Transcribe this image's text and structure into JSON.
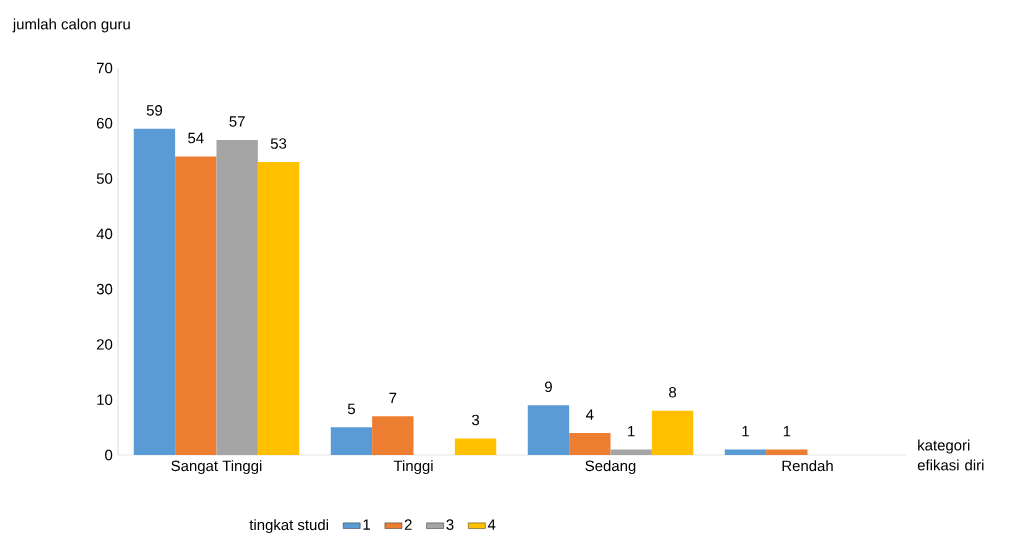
{
  "chart_data": {
    "type": "bar",
    "ylabel": "jumlah calon guru",
    "xlabel": "kategori efikasi diri",
    "legend_title": "tingkat studi",
    "legend": "bottom",
    "categories": [
      "Sangat Tinggi",
      "Tinggi",
      "Sedang",
      "Rendah"
    ],
    "series": [
      {
        "name": "1",
        "color": "#5b9bd5",
        "values": [
          59,
          5,
          9,
          1
        ],
        "value_labels": [
          "59",
          "5",
          "9",
          "1"
        ]
      },
      {
        "name": "2",
        "color": "#ed7d31",
        "values": [
          54,
          7,
          4,
          1
        ],
        "value_labels": [
          "54",
          "7",
          "4",
          "1"
        ]
      },
      {
        "name": "3",
        "color": "#a5a5a5",
        "values": [
          57,
          0,
          1,
          0
        ],
        "value_labels": [
          "57",
          null,
          "1",
          null
        ]
      },
      {
        "name": "4",
        "color": "#ffc000",
        "values": [
          53,
          3,
          8,
          0
        ],
        "value_labels": [
          "53",
          "3",
          "8",
          null
        ]
      }
    ],
    "ylim": [
      0,
      70
    ],
    "yticks": [
      0,
      10,
      20,
      30,
      40,
      50,
      60,
      70
    ]
  }
}
